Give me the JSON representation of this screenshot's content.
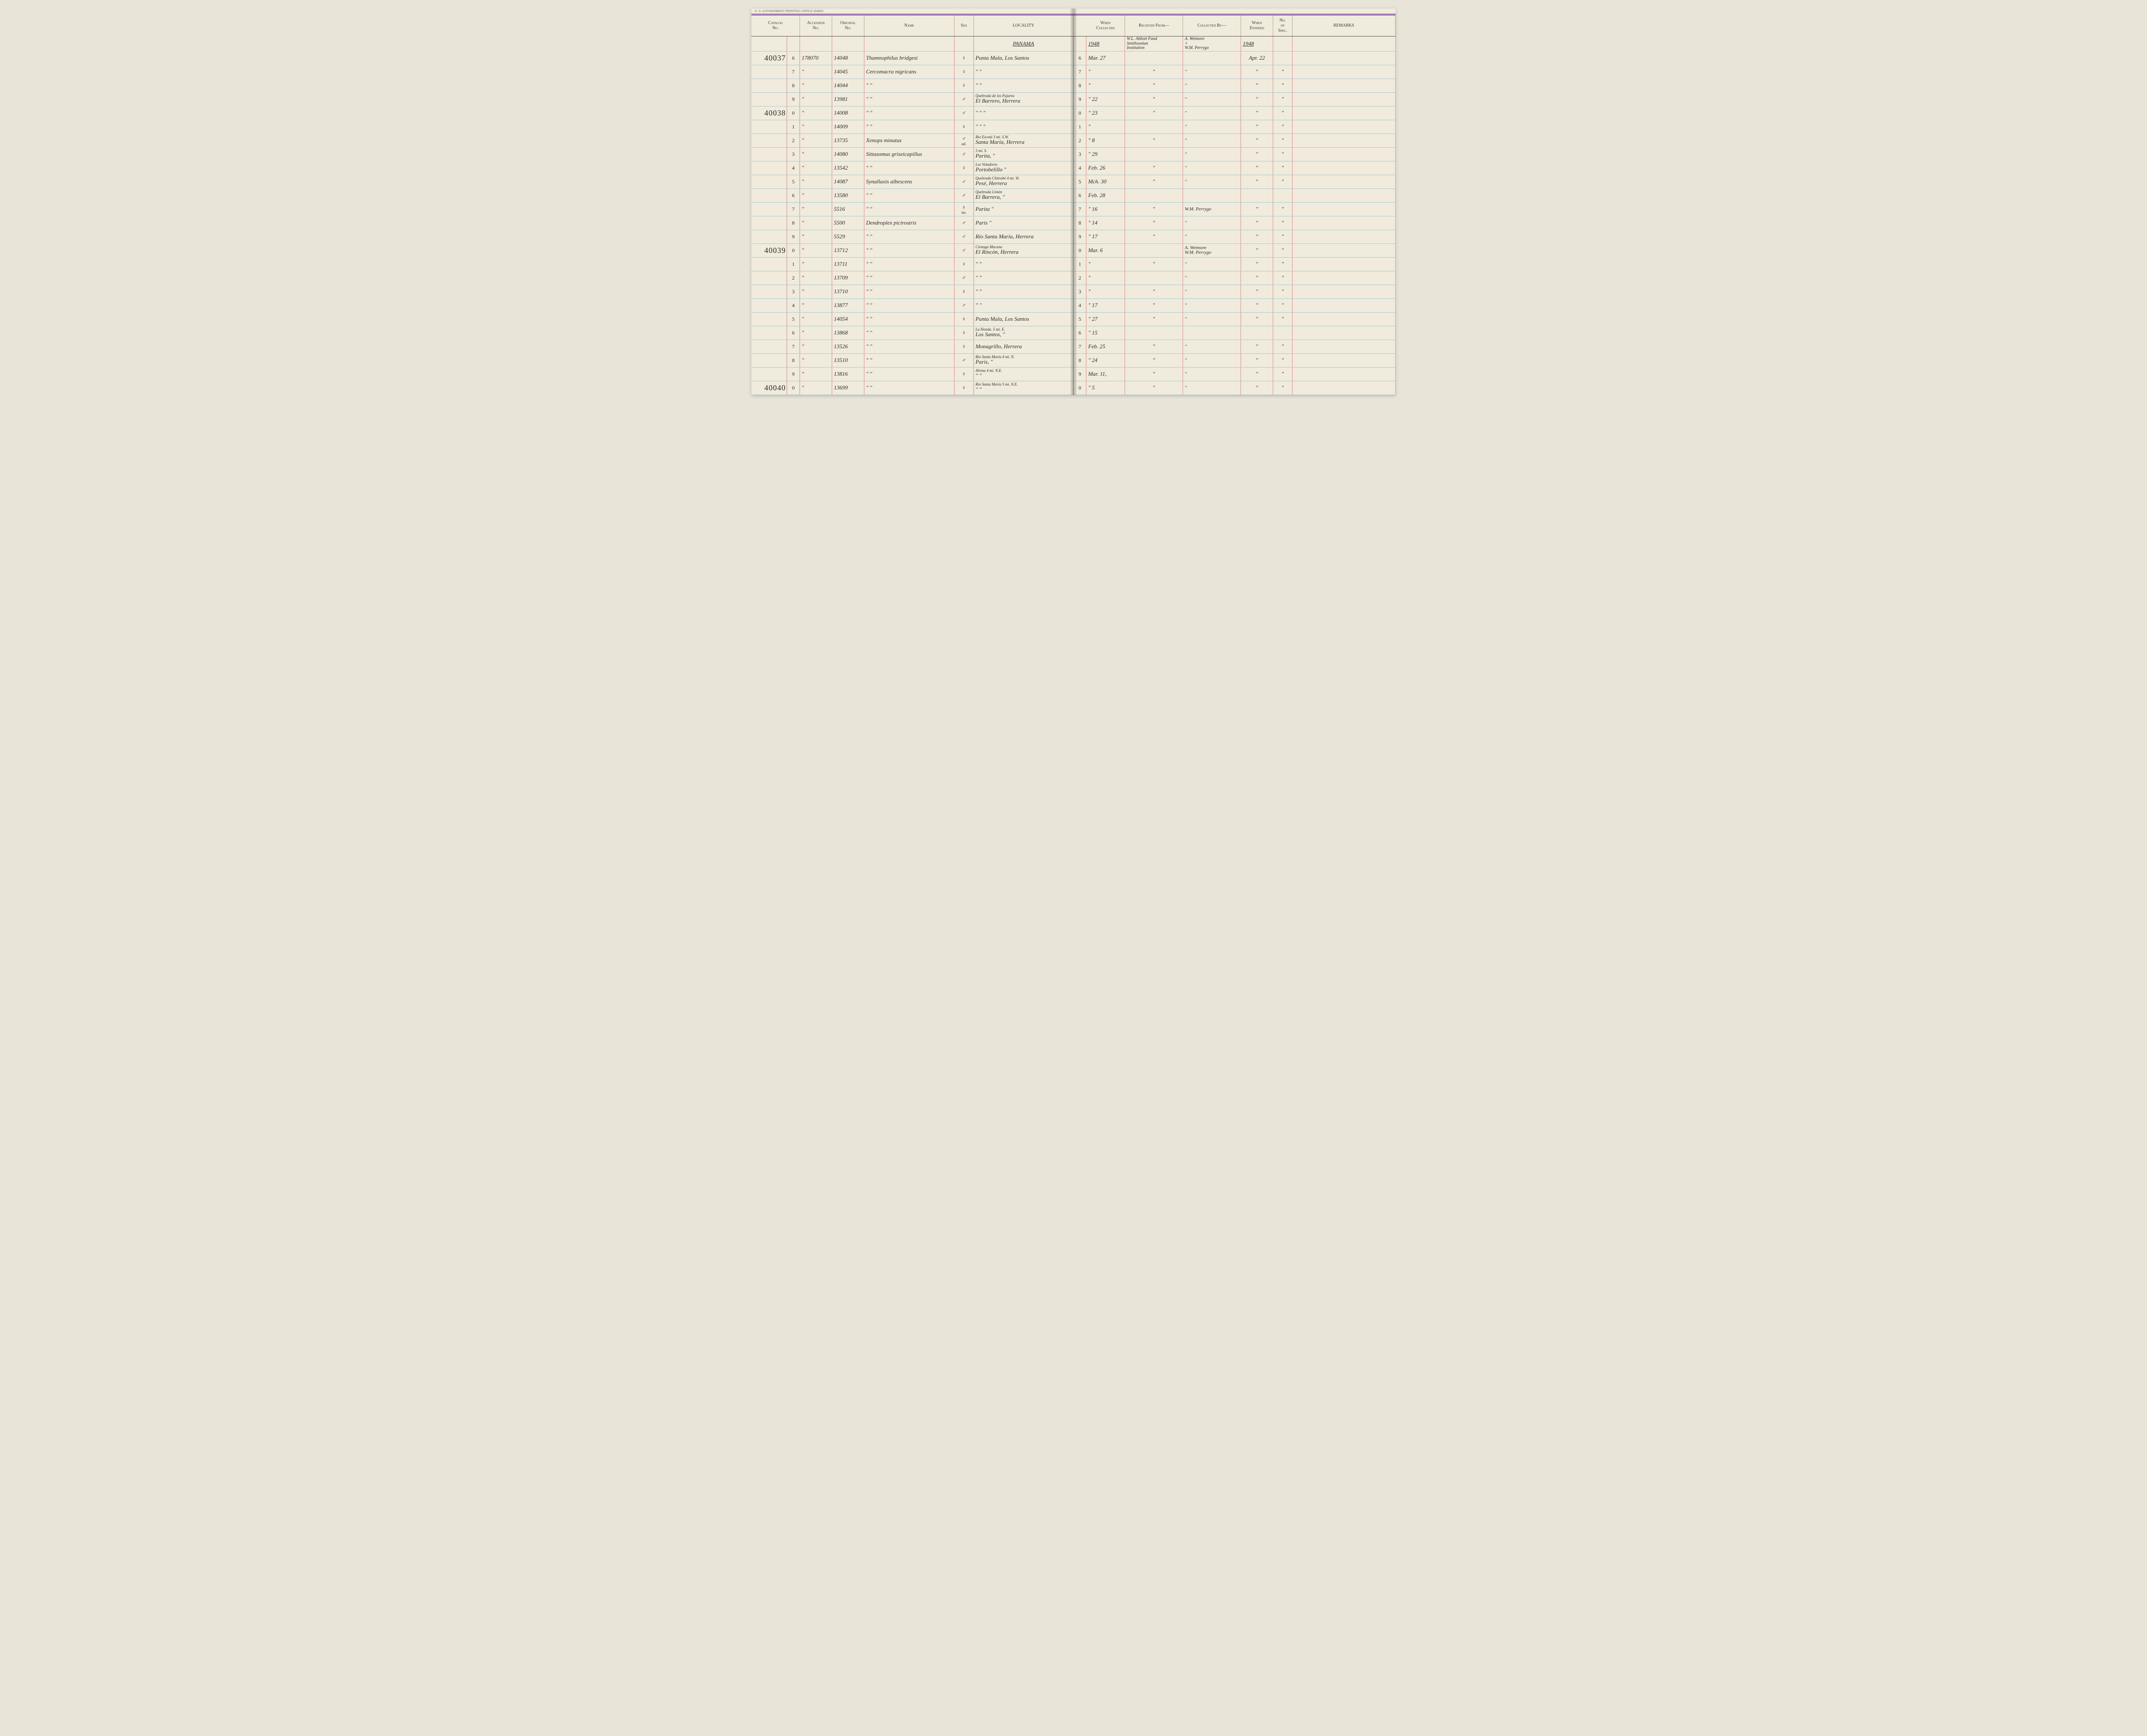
{
  "columns": {
    "catalog": "Catalog\nNo.",
    "accession": "Accession\nNo.",
    "original": "Original\nNo.",
    "name": "Name",
    "sex": "Sex",
    "locality": "LOCALITY",
    "when_collected": "When\nCollected",
    "received_from": "Received From—",
    "collected_by": "Collected By—",
    "when_entered": "When\nEntered",
    "no_spec": "No.\nof\nSpec.",
    "remarks": "REMARKS"
  },
  "printer_mark": "U. S. GOVERNMENT PRINTING OFFICE    664093",
  "header": {
    "locality": "PANAMA",
    "when_collected": "1948",
    "received_from": "W.L. Abbott Fund\nSmithsonian\nInstitution",
    "collected_by": "A. Wetmore\n+\nW.M. Perrygo",
    "when_entered": "1948"
  },
  "rows": [
    {
      "cat1": "40037",
      "cat2": "6",
      "acc": "178070",
      "orig": "14048",
      "name": "Thamnophilus bridgesi",
      "sex": "♀",
      "loc": "Punta Mala, Los Santos",
      "idx": "6",
      "when": "Mar. 27",
      "recv": "",
      "collby": "",
      "ent": "Apr. 22",
      "spec": ""
    },
    {
      "cat1": "",
      "cat2": "7",
      "acc": "\"",
      "orig": "14045",
      "name": "Cercomacra nigricans",
      "sex": "♀",
      "loc": "\"          \"",
      "idx": "7",
      "when": "\"",
      "recv": "\"",
      "collby": "\"",
      "ent": "\"",
      "spec": "\""
    },
    {
      "cat1": "",
      "cat2": "8",
      "acc": "\"",
      "orig": "14044",
      "name": "\"          \"",
      "sex": "♀",
      "loc": "\"          \"",
      "idx": "8",
      "when": "\"",
      "recv": "\"",
      "collby": "\"",
      "ent": "\"",
      "spec": "\""
    },
    {
      "cat1": "",
      "cat2": "9",
      "acc": "\"",
      "orig": "13981",
      "name": "\"          \"",
      "sex": "♂",
      "loc": "El Barrero, Herrera",
      "loc_note": "Quebrada de los Pajaros",
      "idx": "9",
      "when": "\"  22",
      "recv": "\"",
      "collby": "\"",
      "ent": "\"",
      "spec": "\""
    },
    {
      "cat1": "40038",
      "cat2": "0",
      "acc": "\"",
      "orig": "14008",
      "name": "\"          \"",
      "sex": "♂",
      "loc": "\"          \"          \"",
      "idx": "0",
      "when": "\"  23",
      "recv": "\"",
      "collby": "\"",
      "ent": "\"",
      "spec": "\""
    },
    {
      "cat1": "",
      "cat2": "1",
      "acc": "\"",
      "orig": "14009",
      "name": "\"          \"",
      "sex": "♀",
      "loc": "\"          \"          \"",
      "idx": "1",
      "when": "\"",
      "recv": "",
      "collby": "\"",
      "ent": "\"",
      "spec": "\""
    },
    {
      "cat1": "",
      "cat2": "2",
      "acc": "\"",
      "orig": "13735",
      "name": "Xenops minutus",
      "sex": "♂",
      "sex_note": "ad.",
      "loc": "Santa María, Herrera",
      "loc_note": "Río Escotá 3 mi. S.W.",
      "idx": "2",
      "when": "\"  8",
      "recv": "\"",
      "collby": "\"",
      "ent": "\"",
      "spec": "\""
    },
    {
      "cat1": "",
      "cat2": "3",
      "acc": "\"",
      "orig": "14080",
      "name": "Sittasomus griseicapillus",
      "sex": "♂",
      "loc": "Parita,     \"",
      "loc_note": "3 mi. S.",
      "idx": "3",
      "when": "\"  29",
      "recv": "",
      "collby": "\"",
      "ent": "\"",
      "spec": "\""
    },
    {
      "cat1": "",
      "cat2": "4",
      "acc": "\"",
      "orig": "13542",
      "name": "\"          \"",
      "sex": "♀",
      "loc": "Portobelillo     \"",
      "loc_note": "Los Voladores",
      "idx": "4",
      "when": "Feb. 26",
      "recv": "\"",
      "collby": "\"",
      "ent": "\"",
      "spec": "\""
    },
    {
      "cat1": "",
      "cat2": "5",
      "acc": "\"",
      "orig": "14087",
      "name": "Synallaxis albescens",
      "sex": "♂",
      "loc": "Pesé,   Herrera",
      "loc_note": "Quebrada Chitrabé 4 mi. W.",
      "idx": "5",
      "when": "Mch. 30",
      "recv": "\"",
      "collby": "\"",
      "ent": "\"",
      "spec": "\""
    },
    {
      "cat1": "",
      "cat2": "6",
      "acc": "\"",
      "orig": "13580",
      "name": "\"          \"",
      "sex": "♂",
      "loc": "El Barrera,   \"",
      "loc_note": "Quebrada Limón",
      "idx": "6",
      "when": "Feb. 28",
      "recv": "",
      "collby": "",
      "ent": "",
      "spec": ""
    },
    {
      "cat1": "",
      "cat2": "7",
      "acc": "\"",
      "orig": "5516",
      "name": "\"          \"",
      "sex": "♀",
      "sex_note": "im.",
      "loc": "Parita   \"",
      "idx": "7",
      "when": "\"  16",
      "recv": "\"",
      "collby": "W.M. Perrygo",
      "ent": "\"",
      "spec": "\""
    },
    {
      "cat1": "",
      "cat2": "8",
      "acc": "\"",
      "orig": "5500",
      "name": "Dendroplex picirostris",
      "sex": "♂",
      "loc": "Paris    \"",
      "idx": "8",
      "when": "\"  14",
      "recv": "\"",
      "collby": "\"",
      "ent": "\"",
      "spec": "\""
    },
    {
      "cat1": "",
      "cat2": "9",
      "acc": "\"",
      "orig": "5529",
      "name": "\"          \"",
      "sex": "♂",
      "loc": "Río Santa María, Herrera",
      "idx": "9",
      "when": "\"  17",
      "recv": "\"",
      "collby": "\"",
      "ent": "\"",
      "spec": "\""
    },
    {
      "cat1": "40039",
      "cat2": "0",
      "acc": "\"",
      "orig": "13712",
      "name": "\"          \"",
      "sex": "♂",
      "loc": "El Rincón, Herrera",
      "loc_note": "Cienaga Macana",
      "idx": "0",
      "when": "Mar. 6",
      "recv": "",
      "collby": "A. Wetmore\nW.M. Perrygo",
      "ent": "\"",
      "spec": "\""
    },
    {
      "cat1": "",
      "cat2": "1",
      "acc": "\"",
      "orig": "13711",
      "name": "\"          \"",
      "sex": "♀",
      "loc": "\"         \"",
      "idx": "1",
      "when": "\"",
      "recv": "\"",
      "collby": "\"",
      "ent": "\"",
      "spec": "\""
    },
    {
      "cat1": "",
      "cat2": "2",
      "acc": "\"",
      "orig": "13709",
      "name": "\"          \"",
      "sex": "♂",
      "loc": "\"         \"",
      "idx": "2",
      "when": "\"",
      "recv": "",
      "collby": "\"",
      "ent": "\"",
      "spec": "\""
    },
    {
      "cat1": "",
      "cat2": "3",
      "acc": "\"",
      "orig": "13710",
      "name": "\"          \"",
      "sex": "♀",
      "loc": "\"         \"",
      "idx": "3",
      "when": "\"",
      "recv": "\"",
      "collby": "\"",
      "ent": "\"",
      "spec": "\""
    },
    {
      "cat1": "",
      "cat2": "4",
      "acc": "\"",
      "orig": "13877",
      "name": "\"          \"",
      "sex": "♂",
      "loc": "\"         \"",
      "idx": "4",
      "when": "\"  17",
      "recv": "\"",
      "collby": "\"",
      "ent": "\"",
      "spec": "\""
    },
    {
      "cat1": "",
      "cat2": "5",
      "acc": "\"",
      "orig": "14054",
      "name": "\"          \"",
      "sex": "♀",
      "loc": "Punta Mala, Los Santos",
      "idx": "5",
      "when": "\"  27",
      "recv": "\"",
      "collby": "\"",
      "ent": "\"",
      "spec": "\""
    },
    {
      "cat1": "",
      "cat2": "6",
      "acc": "\"",
      "orig": "13868",
      "name": "\"          \"",
      "sex": "♀",
      "loc": "Los Santos,   \"",
      "loc_note": "La Honda. 5 mi. E.",
      "idx": "6",
      "when": "\"  15",
      "recv": "",
      "collby": "",
      "ent": "",
      "spec": ""
    },
    {
      "cat1": "",
      "cat2": "7",
      "acc": "\"",
      "orig": "13526",
      "name": "\"          \"",
      "sex": "♀",
      "loc": "Monagrillo, Herrera",
      "idx": "7",
      "when": "Feb. 25",
      "recv": "\"",
      "collby": "\"",
      "ent": "\"",
      "spec": "\""
    },
    {
      "cat1": "",
      "cat2": "8",
      "acc": "\"",
      "orig": "13510",
      "name": "\"          \"",
      "sex": "♂",
      "loc": "Paris,   \"",
      "loc_note": "Río Santa María 4 mi. N.",
      "idx": "8",
      "when": "\"  24",
      "recv": "\"",
      "collby": "\"",
      "ent": "\"",
      "spec": "\""
    },
    {
      "cat1": "",
      "cat2": "9",
      "acc": "\"",
      "orig": "13816",
      "name": "\"          \"",
      "sex": "♀",
      "loc": "\"         \"",
      "loc_note": "Alvina 4 mi. N.E.",
      "idx": "9",
      "when": "Mar. 11,",
      "recv": "\"",
      "collby": "\"",
      "ent": "\"",
      "spec": "\""
    },
    {
      "cat1": "40040",
      "cat2": "0",
      "acc": "\"",
      "orig": "13699",
      "name": "\"          \"",
      "sex": "♀",
      "loc": "\"         \"",
      "loc_note": "Río Santa María 5 mi. N.E.",
      "idx": "0",
      "when": "\"  5",
      "recv": "\"",
      "collby": "\"",
      "ent": "\"",
      "spec": "\""
    }
  ]
}
